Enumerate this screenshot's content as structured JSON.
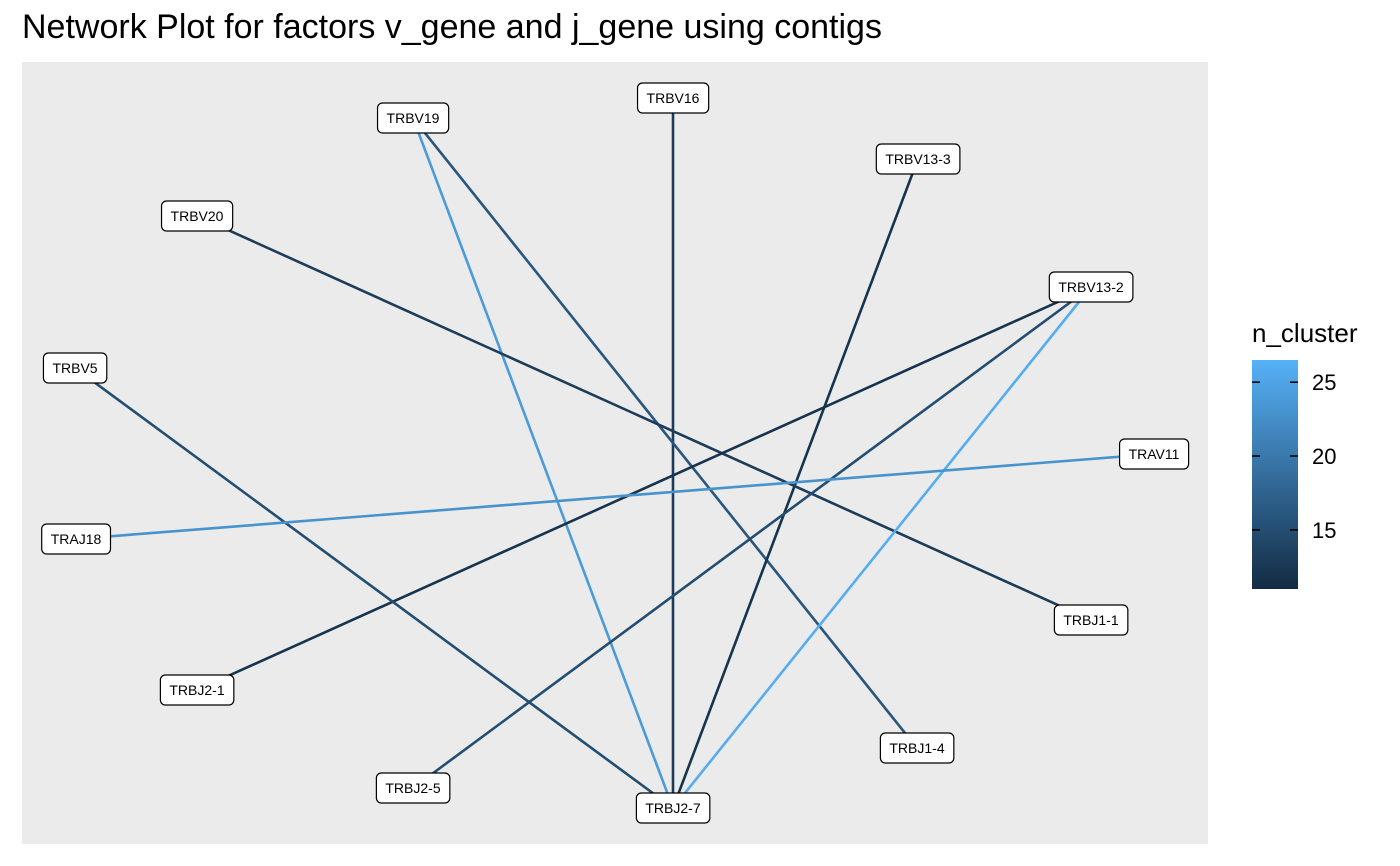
{
  "chart_data": {
    "type": "network",
    "title": "Network Plot for factors v_gene and j_gene using contigs",
    "nodes": [
      "TRBV16",
      "TRBV19",
      "TRBV13-3",
      "TRBV20",
      "TRBV13-2",
      "TRBV5",
      "TRAV11",
      "TRAJ18",
      "TRBJ1-1",
      "TRBJ2-1",
      "TRBJ1-4",
      "TRBJ2-5",
      "TRBJ2-7"
    ],
    "edges": [
      {
        "from": "TRBV16",
        "to": "TRBJ2-7",
        "n_cluster": 13
      },
      {
        "from": "TRBV19",
        "to": "TRBJ2-7",
        "n_cluster": 24
      },
      {
        "from": "TRBV19",
        "to": "TRBJ1-4",
        "n_cluster": 16
      },
      {
        "from": "TRBV13-3",
        "to": "TRBJ2-7",
        "n_cluster": 12
      },
      {
        "from": "TRBV20",
        "to": "TRBJ1-1",
        "n_cluster": 13
      },
      {
        "from": "TRBV13-2",
        "to": "TRBJ2-1",
        "n_cluster": 12
      },
      {
        "from": "TRBV13-2",
        "to": "TRBJ2-5",
        "n_cluster": 15
      },
      {
        "from": "TRBV13-2",
        "to": "TRBJ2-7",
        "n_cluster": 26
      },
      {
        "from": "TRBV5",
        "to": "TRBJ2-7",
        "n_cluster": 15
      },
      {
        "from": "TRAV11",
        "to": "TRAJ18",
        "n_cluster": 23
      }
    ],
    "legend": {
      "title": "n_cluster",
      "ticks": [
        15,
        20,
        25
      ],
      "range": [
        11,
        26.5
      ],
      "low_color": "#132B43",
      "high_color": "#56B1F7",
      "placement": "right"
    },
    "panel_background": "#EBEBEB",
    "grid": false
  }
}
